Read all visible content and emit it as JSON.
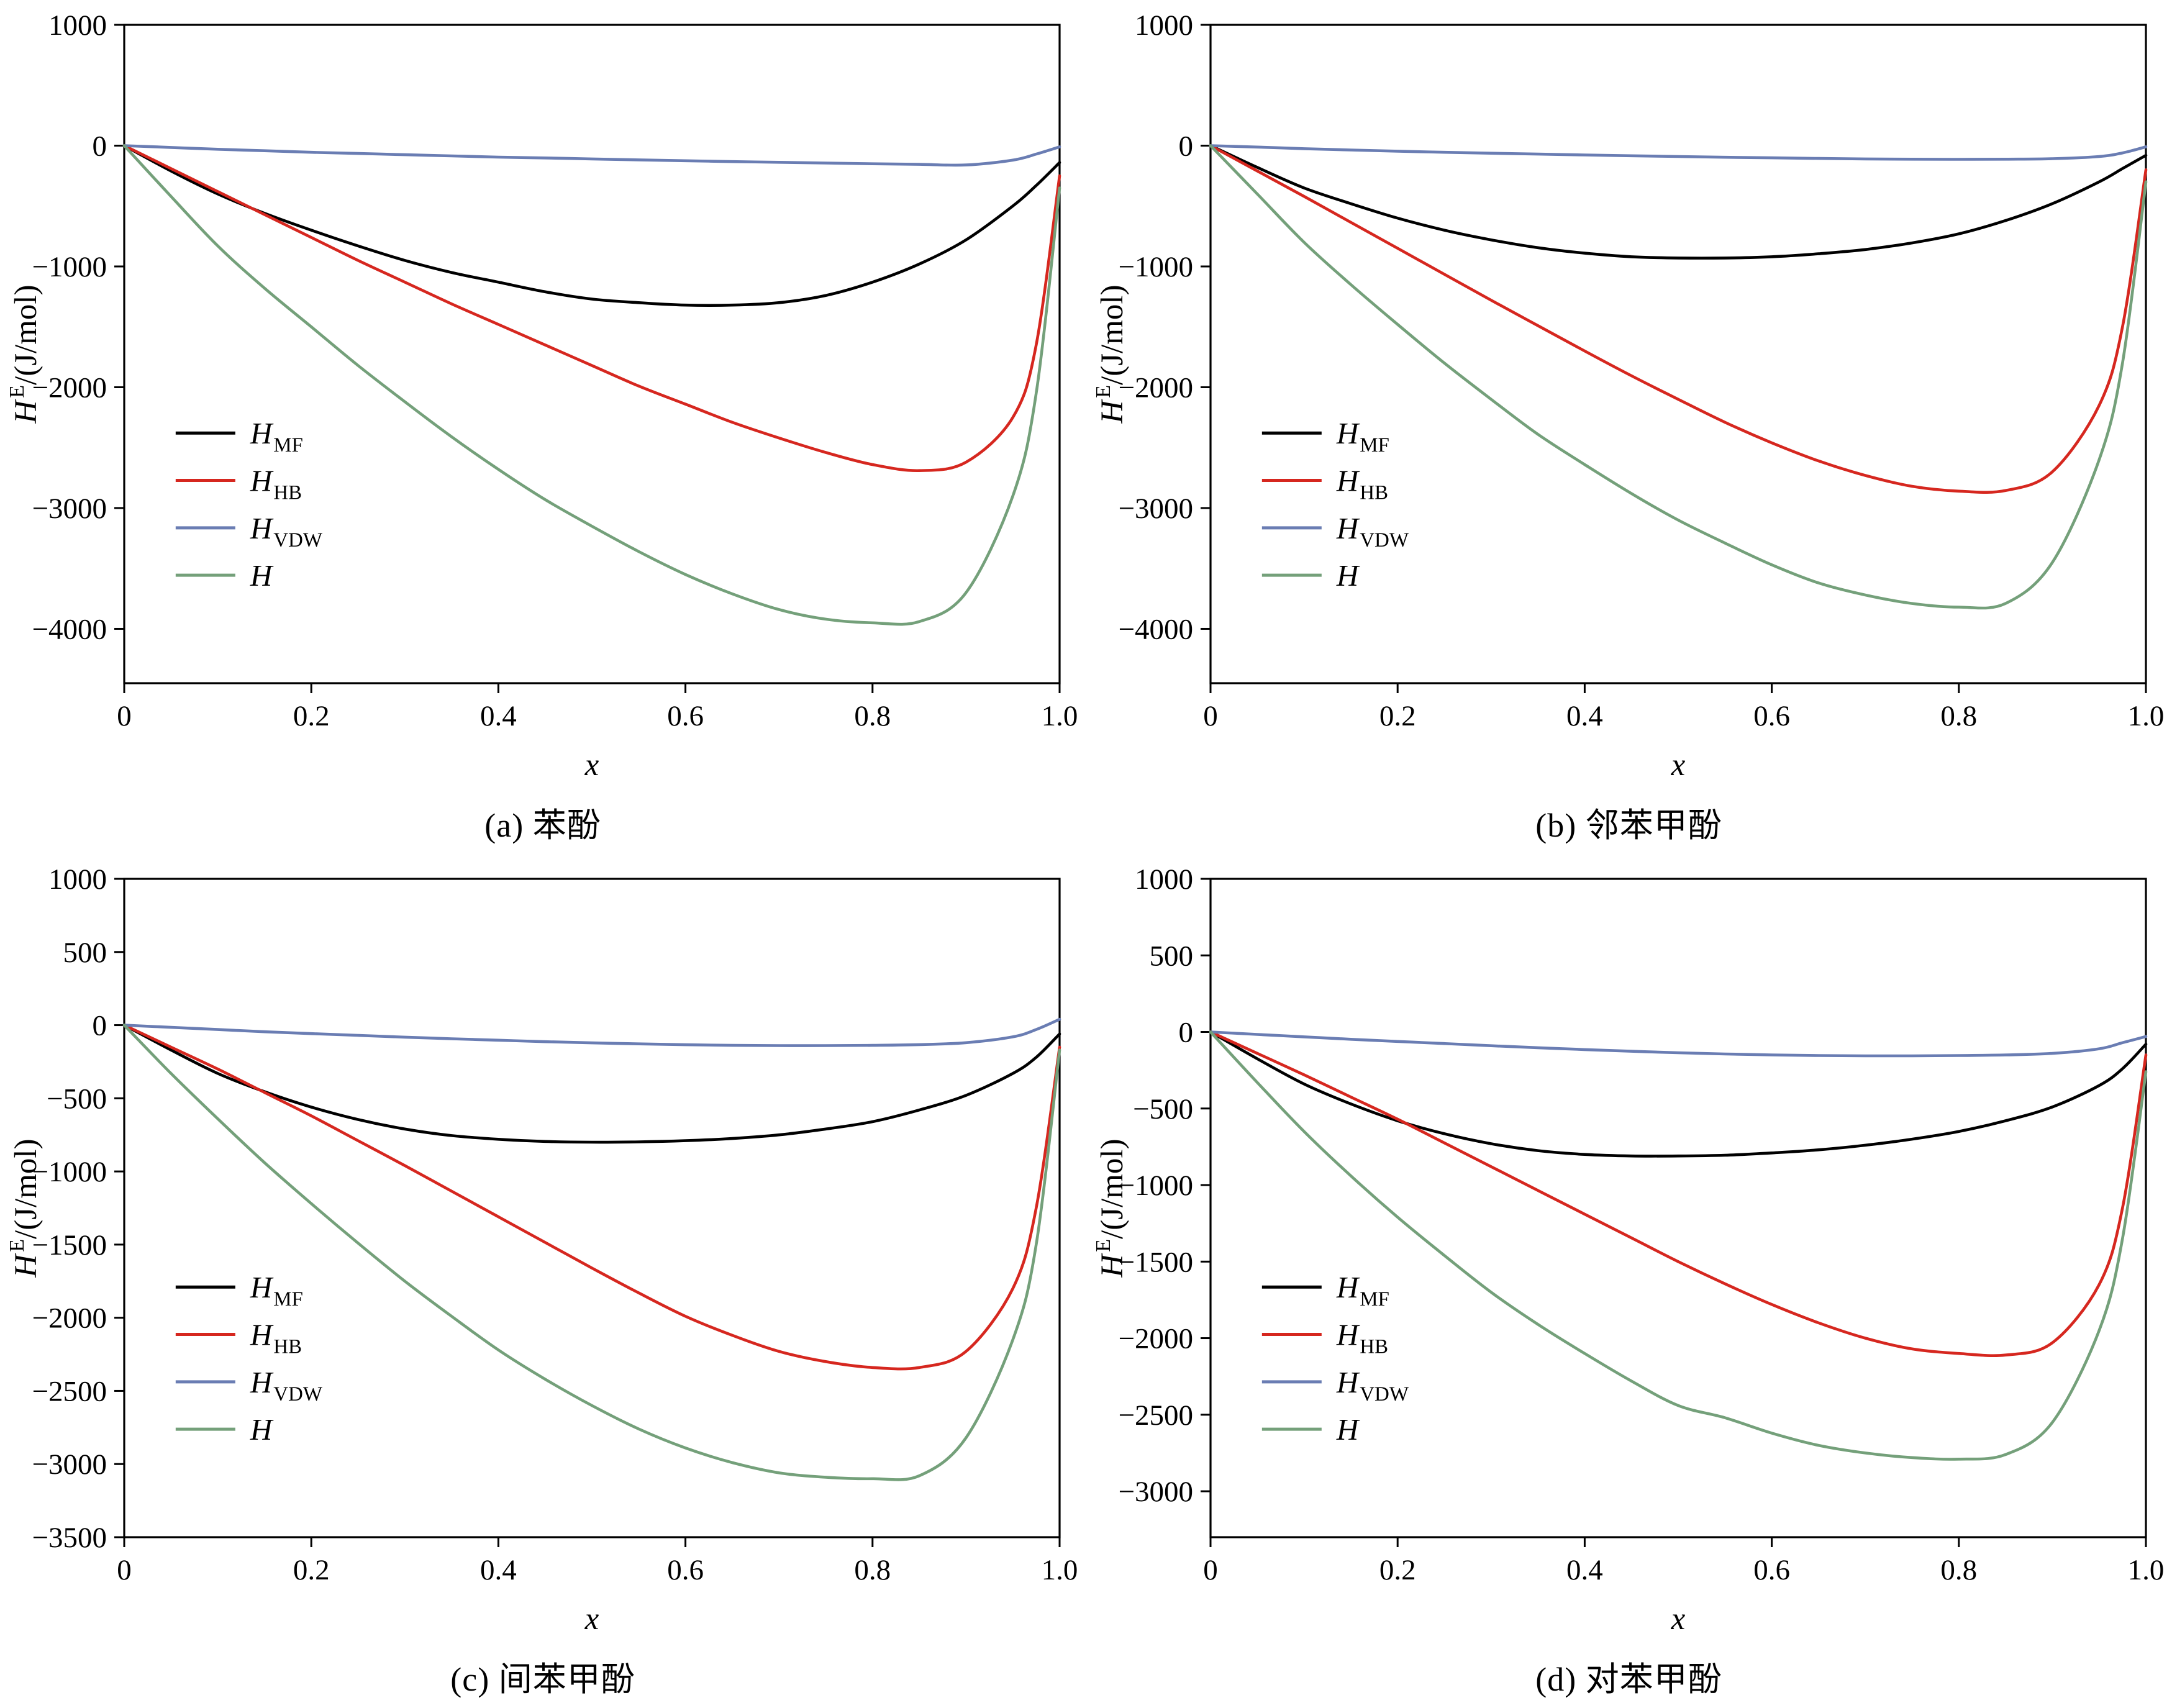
{
  "figure": {
    "background": "#ffffff"
  },
  "colors": {
    "HMF": "#000000",
    "HHB": "#d6271f",
    "HVDW": "#6a7db3",
    "H": "#74a07a"
  },
  "chart_data": [
    {
      "type": "line",
      "caption": "(a) 苯酚",
      "xlabel": "x",
      "ylabel": {
        "base": "H",
        "sup": "E",
        "rest": "/(J/mol)"
      },
      "xlim": [
        0,
        1.0
      ],
      "ylim": [
        -4450,
        1000
      ],
      "xticks": [
        0,
        0.2,
        0.4,
        0.6,
        0.8,
        1.0
      ],
      "xtick_labels": [
        "0",
        "0.2",
        "0.4",
        "0.6",
        "0.8",
        "1.0"
      ],
      "yticks": [
        1000,
        0,
        -1000,
        -2000,
        -3000,
        -4000
      ],
      "ytick_labels": [
        "1000",
        "0",
        "−1000",
        "−2000",
        "−3000",
        "−4000"
      ],
      "legend_position": "left-lower",
      "grid": false,
      "x": [
        0,
        0.05,
        0.1,
        0.15,
        0.2,
        0.25,
        0.3,
        0.35,
        0.4,
        0.45,
        0.5,
        0.55,
        0.6,
        0.65,
        0.7,
        0.75,
        0.8,
        0.85,
        0.9,
        0.95,
        0.975,
        1.0
      ],
      "series": [
        {
          "name": "H_MF",
          "legend_main": "H",
          "legend_sub": "MF",
          "color": "#000000",
          "y": [
            0,
            -210,
            -400,
            -560,
            -700,
            -830,
            -950,
            -1050,
            -1130,
            -1210,
            -1270,
            -1300,
            -1320,
            -1320,
            -1300,
            -1240,
            -1130,
            -980,
            -780,
            -500,
            -330,
            -140
          ]
        },
        {
          "name": "H_HB",
          "legend_main": "H",
          "legend_sub": "HB",
          "color": "#d6271f",
          "y": [
            0,
            -190,
            -380,
            -570,
            -760,
            -950,
            -1130,
            -1310,
            -1480,
            -1650,
            -1820,
            -1990,
            -2140,
            -2290,
            -2420,
            -2540,
            -2640,
            -2690,
            -2620,
            -2250,
            -1650,
            -250
          ]
        },
        {
          "name": "H_VDW",
          "legend_main": "H",
          "legend_sub": "VDW",
          "color": "#6a7db3",
          "y": [
            0,
            -15,
            -30,
            -42,
            -55,
            -65,
            -75,
            -85,
            -95,
            -102,
            -110,
            -118,
            -125,
            -132,
            -138,
            -144,
            -150,
            -155,
            -160,
            -120,
            -70,
            -10
          ]
        },
        {
          "name": "H",
          "legend_main": "H",
          "legend_sub": "",
          "color": "#74a07a",
          "y": [
            0,
            -420,
            -830,
            -1180,
            -1500,
            -1820,
            -2120,
            -2410,
            -2680,
            -2930,
            -3150,
            -3360,
            -3550,
            -3710,
            -3840,
            -3920,
            -3950,
            -3940,
            -3700,
            -2900,
            -2050,
            -350
          ]
        }
      ]
    },
    {
      "type": "line",
      "caption": "(b) 邻苯甲酚",
      "xlabel": "x",
      "ylabel": {
        "base": "H",
        "sup": "E",
        "rest": "/(J/mol)"
      },
      "xlim": [
        0,
        1.0
      ],
      "ylim": [
        -4450,
        1000
      ],
      "xticks": [
        0,
        0.2,
        0.4,
        0.6,
        0.8,
        1.0
      ],
      "xtick_labels": [
        "0",
        "0.2",
        "0.4",
        "0.6",
        "0.8",
        "1.0"
      ],
      "yticks": [
        1000,
        0,
        -1000,
        -2000,
        -3000,
        -4000
      ],
      "ytick_labels": [
        "1000",
        "0",
        "−1000",
        "−2000",
        "−3000",
        "−4000"
      ],
      "legend_position": "left-lower",
      "grid": false,
      "x": [
        0,
        0.05,
        0.1,
        0.15,
        0.2,
        0.25,
        0.3,
        0.35,
        0.4,
        0.45,
        0.5,
        0.55,
        0.6,
        0.65,
        0.7,
        0.75,
        0.8,
        0.85,
        0.9,
        0.95,
        0.975,
        1.0
      ],
      "series": [
        {
          "name": "H_MF",
          "legend_main": "H",
          "legend_sub": "MF",
          "color": "#000000",
          "y": [
            0,
            -180,
            -350,
            -480,
            -600,
            -700,
            -780,
            -845,
            -890,
            -920,
            -930,
            -930,
            -920,
            -895,
            -860,
            -805,
            -730,
            -620,
            -480,
            -300,
            -190,
            -80
          ]
        },
        {
          "name": "H_HB",
          "legend_main": "H",
          "legend_sub": "HB",
          "color": "#d6271f",
          "y": [
            0,
            -210,
            -420,
            -635,
            -850,
            -1065,
            -1280,
            -1490,
            -1700,
            -1905,
            -2100,
            -2290,
            -2460,
            -2610,
            -2730,
            -2820,
            -2860,
            -2855,
            -2700,
            -2150,
            -1500,
            -200
          ]
        },
        {
          "name": "H_VDW",
          "legend_main": "H",
          "legend_sub": "VDW",
          "color": "#6a7db3",
          "y": [
            0,
            -12,
            -25,
            -36,
            -46,
            -55,
            -63,
            -70,
            -77,
            -84,
            -90,
            -96,
            -101,
            -106,
            -110,
            -112,
            -113,
            -112,
            -108,
            -90,
            -60,
            -10
          ]
        },
        {
          "name": "H",
          "legend_main": "H",
          "legend_sub": "",
          "color": "#74a07a",
          "y": [
            0,
            -400,
            -800,
            -1150,
            -1480,
            -1800,
            -2100,
            -2390,
            -2640,
            -2880,
            -3100,
            -3290,
            -3470,
            -3620,
            -3720,
            -3790,
            -3820,
            -3790,
            -3450,
            -2600,
            -1800,
            -300
          ]
        }
      ]
    },
    {
      "type": "line",
      "caption": "(c) 间苯甲酚",
      "xlabel": "x",
      "ylabel": {
        "base": "H",
        "sup": "E",
        "rest": "/(J/mol)"
      },
      "xlim": [
        0,
        1.0
      ],
      "ylim": [
        -3500,
        1000
      ],
      "xticks": [
        0,
        0.2,
        0.4,
        0.6,
        0.8,
        1.0
      ],
      "xtick_labels": [
        "0",
        "0.2",
        "0.4",
        "0.6",
        "0.8",
        "1.0"
      ],
      "yticks": [
        1000,
        500,
        0,
        -500,
        -1000,
        -1500,
        -2000,
        -2500,
        -3000,
        -3500
      ],
      "ytick_labels": [
        "1000",
        "500",
        "0",
        "−500",
        "−1000",
        "−1500",
        "−2000",
        "−2500",
        "−3000",
        "−3500"
      ],
      "legend_position": "left-lower",
      "grid": false,
      "x": [
        0,
        0.05,
        0.1,
        0.15,
        0.2,
        0.25,
        0.3,
        0.35,
        0.4,
        0.45,
        0.5,
        0.55,
        0.6,
        0.65,
        0.7,
        0.75,
        0.8,
        0.85,
        0.9,
        0.95,
        0.975,
        1.0
      ],
      "series": [
        {
          "name": "H_MF",
          "legend_main": "H",
          "legend_sub": "MF",
          "color": "#000000",
          "y": [
            0,
            -170,
            -330,
            -455,
            -560,
            -645,
            -710,
            -755,
            -780,
            -795,
            -800,
            -798,
            -790,
            -775,
            -750,
            -710,
            -660,
            -580,
            -480,
            -330,
            -220,
            -60
          ]
        },
        {
          "name": "H_HB",
          "legend_main": "H",
          "legend_sub": "HB",
          "color": "#d6271f",
          "y": [
            0,
            -150,
            -300,
            -460,
            -620,
            -790,
            -960,
            -1135,
            -1310,
            -1485,
            -1660,
            -1830,
            -1990,
            -2120,
            -2230,
            -2300,
            -2340,
            -2340,
            -2230,
            -1800,
            -1250,
            -150
          ]
        },
        {
          "name": "H_VDW",
          "legend_main": "H",
          "legend_sub": "VDW",
          "color": "#6a7db3",
          "y": [
            0,
            -15,
            -30,
            -45,
            -58,
            -70,
            -82,
            -93,
            -103,
            -113,
            -121,
            -128,
            -134,
            -138,
            -140,
            -140,
            -138,
            -133,
            -120,
            -80,
            -30,
            40
          ]
        },
        {
          "name": "H",
          "legend_main": "H",
          "legend_sub": "",
          "color": "#74a07a",
          "y": [
            0,
            -330,
            -640,
            -940,
            -1220,
            -1490,
            -1750,
            -1990,
            -2220,
            -2420,
            -2600,
            -2760,
            -2890,
            -2990,
            -3060,
            -3090,
            -3100,
            -3080,
            -2820,
            -2150,
            -1500,
            -170
          ]
        }
      ]
    },
    {
      "type": "line",
      "caption": "(d) 对苯甲酚",
      "xlabel": "x",
      "ylabel": {
        "base": "H",
        "sup": "E",
        "rest": "/(J/mol)"
      },
      "xlim": [
        0,
        1.0
      ],
      "ylim": [
        -3300,
        1000
      ],
      "xticks": [
        0,
        0.2,
        0.4,
        0.6,
        0.8,
        1.0
      ],
      "xtick_labels": [
        "0",
        "0.2",
        "0.4",
        "0.6",
        "0.8",
        "1.0"
      ],
      "yticks": [
        1000,
        500,
        0,
        -500,
        -1000,
        -1500,
        -2000,
        -2500,
        -3000
      ],
      "ytick_labels": [
        "1000",
        "500",
        "0",
        "−500",
        "−1000",
        "−1500",
        "−2000",
        "−2500",
        "−3000"
      ],
      "legend_position": "left-lower",
      "grid": false,
      "x": [
        0,
        0.05,
        0.1,
        0.15,
        0.2,
        0.25,
        0.3,
        0.35,
        0.4,
        0.45,
        0.5,
        0.55,
        0.6,
        0.65,
        0.7,
        0.75,
        0.8,
        0.85,
        0.9,
        0.95,
        0.975,
        1.0
      ],
      "series": [
        {
          "name": "H_MF",
          "legend_main": "H",
          "legend_sub": "MF",
          "color": "#000000",
          "y": [
            0,
            -175,
            -340,
            -470,
            -580,
            -665,
            -730,
            -775,
            -800,
            -810,
            -810,
            -805,
            -790,
            -770,
            -740,
            -700,
            -650,
            -580,
            -490,
            -350,
            -240,
            -80
          ]
        },
        {
          "name": "H_HB",
          "legend_main": "H",
          "legend_sub": "HB",
          "color": "#d6271f",
          "y": [
            0,
            -140,
            -280,
            -425,
            -570,
            -725,
            -880,
            -1035,
            -1190,
            -1345,
            -1500,
            -1645,
            -1780,
            -1900,
            -2000,
            -2070,
            -2100,
            -2110,
            -2030,
            -1650,
            -1150,
            -150
          ]
        },
        {
          "name": "H_VDW",
          "legend_main": "H",
          "legend_sub": "VDW",
          "color": "#6a7db3",
          "y": [
            0,
            -16,
            -32,
            -48,
            -62,
            -76,
            -90,
            -103,
            -115,
            -126,
            -136,
            -144,
            -150,
            -154,
            -156,
            -156,
            -154,
            -150,
            -140,
            -110,
            -70,
            -30
          ]
        },
        {
          "name": "H",
          "legend_main": "H",
          "legend_sub": "",
          "color": "#74a07a",
          "y": [
            0,
            -330,
            -650,
            -940,
            -1210,
            -1460,
            -1700,
            -1910,
            -2100,
            -2280,
            -2440,
            -2520,
            -2620,
            -2700,
            -2750,
            -2780,
            -2790,
            -2760,
            -2550,
            -1950,
            -1350,
            -260
          ]
        }
      ]
    }
  ]
}
